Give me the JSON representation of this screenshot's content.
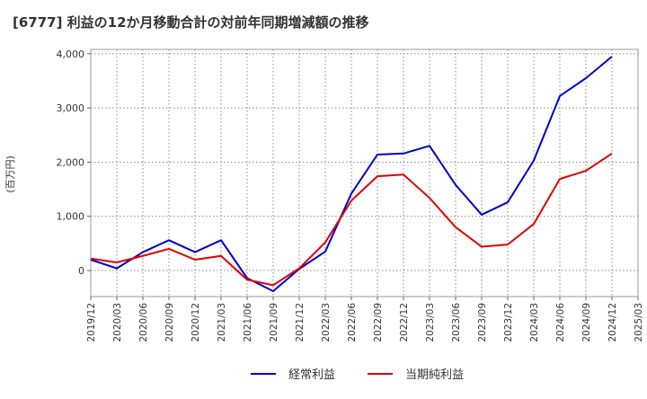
{
  "chart_data": {
    "type": "line",
    "title": "[6777]  利益の12か月移動合計の対前年同期増減額の推移",
    "ylabel": "(百万円)",
    "xlabel": "",
    "ylim": [
      -480,
      4080
    ],
    "yticks": [
      0,
      1000,
      2000,
      3000,
      4000
    ],
    "ytick_labels": [
      "0",
      "1,000",
      "2,000",
      "3,000",
      "4,000"
    ],
    "categories": [
      "2019/12",
      "2020/03",
      "2020/06",
      "2020/09",
      "2020/12",
      "2021/03",
      "2021/06",
      "2021/09",
      "2021/12",
      "2022/03",
      "2022/06",
      "2022/09",
      "2022/12",
      "2023/03",
      "2023/06",
      "2023/09",
      "2023/12",
      "2024/03",
      "2024/06",
      "2024/09",
      "2024/12",
      "2025/03"
    ],
    "grid": true,
    "legend_position": "bottom",
    "series": [
      {
        "name": "経常利益",
        "color": "#0000cc",
        "values": [
          200,
          40,
          340,
          560,
          340,
          560,
          -140,
          -380,
          30,
          350,
          1420,
          2140,
          2160,
          2300,
          1580,
          1030,
          1260,
          2030,
          3220,
          3550,
          3950,
          null
        ]
      },
      {
        "name": "当期純利益",
        "color": "#e00000",
        "values": [
          220,
          150,
          270,
          400,
          200,
          270,
          -170,
          -270,
          40,
          520,
          1290,
          1740,
          1770,
          1340,
          800,
          440,
          480,
          860,
          1690,
          1840,
          2160,
          null
        ]
      }
    ]
  }
}
